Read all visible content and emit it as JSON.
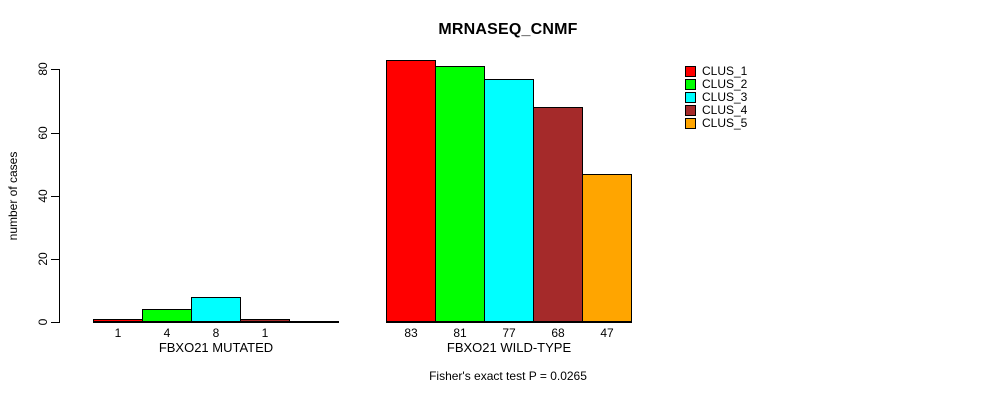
{
  "chart_data": {
    "type": "bar",
    "title": "MRNASEQ_CNMF",
    "ylabel": "number of cases",
    "xlabel": "",
    "ylim": [
      0,
      80
    ],
    "yticks": [
      0,
      20,
      40,
      60,
      80
    ],
    "grid": false,
    "legend_position": "top-right",
    "series": [
      {
        "name": "CLUS_1",
        "color": "#FF0000"
      },
      {
        "name": "CLUS_2",
        "color": "#00FF00"
      },
      {
        "name": "CLUS_3",
        "color": "#00FFFF"
      },
      {
        "name": "CLUS_4",
        "color": "#A52A2A"
      },
      {
        "name": "CLUS_5",
        "color": "#FFA500"
      }
    ],
    "groups": [
      {
        "label": "FBXO21 MUTATED",
        "values": [
          1,
          4,
          8,
          1,
          0
        ],
        "bar_labels": [
          "1",
          "4",
          "8",
          "1",
          ""
        ]
      },
      {
        "label": "FBXO21 WILD-TYPE",
        "values": [
          83,
          81,
          77,
          68,
          47
        ],
        "bar_labels": [
          "83",
          "81",
          "77",
          "68",
          "47"
        ]
      }
    ],
    "annotation": "Fisher's exact test P = 0.0265"
  }
}
